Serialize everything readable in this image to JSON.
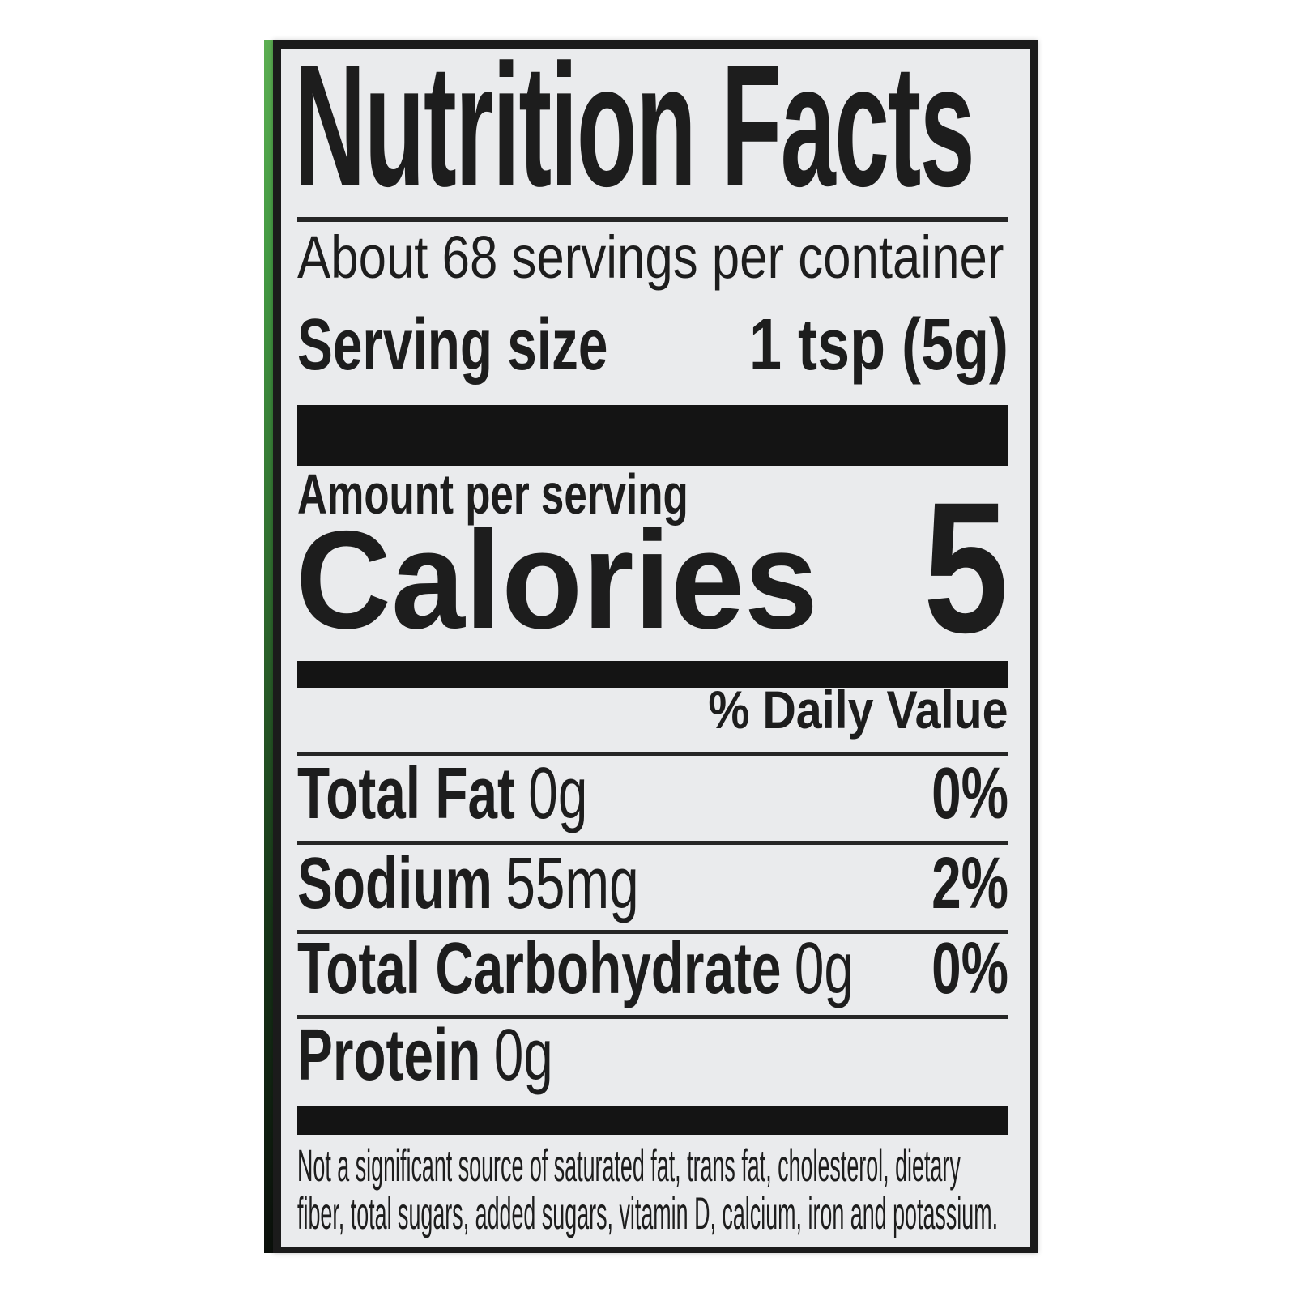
{
  "label": {
    "title": "Nutrition Facts",
    "servings_per_container": "About 68 servings per container",
    "serving_size": {
      "label": "Serving size",
      "value": "1 tsp (5g)"
    },
    "amount_per_serving": "Amount per serving",
    "calories": {
      "label": "Calories",
      "value": "5"
    },
    "daily_value_header": "% Daily Value",
    "rows": [
      {
        "name": "Total Fat",
        "amount": "0g",
        "dv": "0%"
      },
      {
        "name": "Sodium",
        "amount": "55mg",
        "dv": "2%"
      },
      {
        "name": "Total Carbohydrate",
        "amount": "0g",
        "dv": "0%"
      },
      {
        "name": "Protein",
        "amount": "0g",
        "dv": ""
      }
    ],
    "footnote_lines": [
      "Not a significant source of saturated fat, trans fat, cholesterol, dietary",
      "fiber, total sugars, added sugars, vitamin D, calcium, iron and potassium."
    ],
    "colors": {
      "stripe_green": "#57aa4e",
      "label_bg": "#eaebed",
      "ink": "#1d1d1d",
      "bar": "#141414"
    }
  }
}
